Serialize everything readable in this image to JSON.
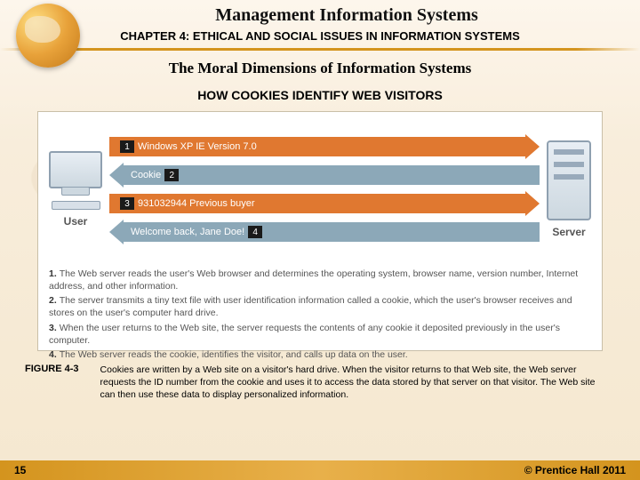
{
  "header": {
    "title": "Management Information Systems",
    "chapter": "CHAPTER 4: ETHICAL AND SOCIAL ISSUES IN INFORMATION SYSTEMS"
  },
  "section_title": "The Moral Dimensions of Information Systems",
  "sub_title": "HOW COOKIES IDENTIFY WEB VISITORS",
  "diagram": {
    "user_label": "User",
    "server_label": "Server",
    "arrows": [
      {
        "num": "1",
        "dir": "right",
        "text": "Windows XP  IE  Version 7.0",
        "bg": "#e07830"
      },
      {
        "num": "2",
        "dir": "left",
        "text": "Cookie",
        "bg": "#8ca8b8"
      },
      {
        "num": "3",
        "dir": "right",
        "text": "931032944 Previous buyer",
        "bg": "#e07830"
      },
      {
        "num": "4",
        "dir": "left",
        "text": "Welcome back, Jane Doe!",
        "bg": "#8ca8b8"
      }
    ]
  },
  "steps": [
    "The Web server reads the user's Web browser and determines the operating system, browser name, version number, Internet address, and other information.",
    "The server transmits a tiny text file with user identification information called a cookie, which the user's browser receives and stores on the user's computer hard drive.",
    "When the user returns to the Web site, the server requests the contents of any cookie it deposited previously in the user's computer.",
    "The Web server reads the cookie, identifies the visitor, and calls up data on the user."
  ],
  "figure_label": "FIGURE 4-3",
  "caption": "Cookies are written by a Web site on a visitor's hard drive. When the visitor returns to that Web site, the Web server requests the ID number from the cookie and uses it to access the data stored by that server on that visitor. The Web site can then use these data to display personalized information.",
  "footer": {
    "page": "15",
    "copyright": "© Prentice Hall 2011"
  },
  "colors": {
    "accent": "#d4941e",
    "arrow_orange": "#e07830",
    "arrow_gray": "#8ca8b8"
  }
}
